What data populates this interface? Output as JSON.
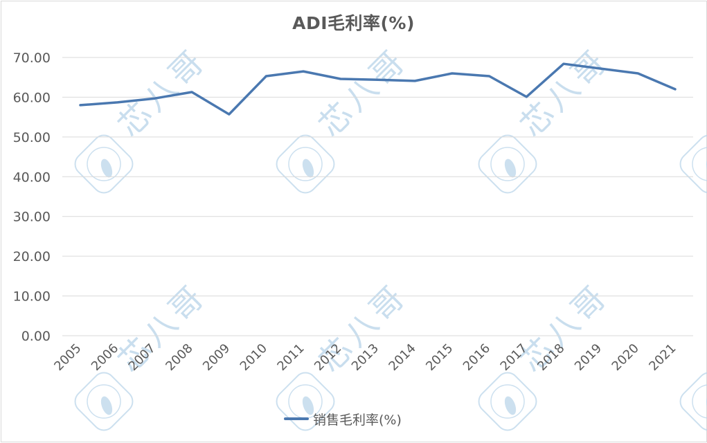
{
  "title": "ADI毛利率(%)",
  "legend": {
    "label": "销售毛利率(%)",
    "color": "#4a78b0"
  },
  "watermark": {
    "text": "芯八哥",
    "color": "#bcd6ea"
  },
  "colors": {
    "line": "#4a78b0",
    "grid": "#d9d9d9",
    "text": "#595959"
  },
  "y_ticks": [
    "70.00",
    "60.00",
    "50.00",
    "40.00",
    "30.00",
    "20.00",
    "10.00",
    "0.00"
  ],
  "x_ticks": [
    "2005",
    "2006",
    "2007",
    "2008",
    "2009",
    "2010",
    "2011",
    "2012",
    "2013",
    "2014",
    "2015",
    "2016",
    "2017",
    "2018",
    "2019",
    "2020",
    "2021"
  ],
  "chart_data": {
    "type": "line",
    "title": "ADI毛利率(%)",
    "xlabel": "",
    "ylabel": "",
    "categories": [
      "2005",
      "2006",
      "2007",
      "2008",
      "2009",
      "2010",
      "2011",
      "2012",
      "2013",
      "2014",
      "2015",
      "2016",
      "2017",
      "2018",
      "2019",
      "2020",
      "2021"
    ],
    "series": [
      {
        "name": "销售毛利率(%)",
        "values": [
          58.0,
          58.7,
          59.7,
          61.3,
          55.7,
          65.3,
          66.5,
          64.6,
          64.4,
          64.1,
          66.0,
          65.3,
          60.1,
          68.4,
          67.2,
          66.0,
          62.0
        ]
      }
    ],
    "ylim": [
      0,
      70
    ],
    "y_tick_step": 10,
    "grid": true,
    "legend_position": "bottom"
  }
}
